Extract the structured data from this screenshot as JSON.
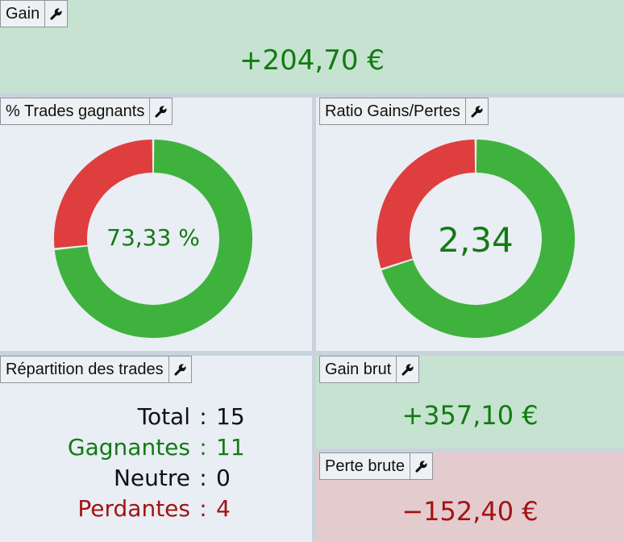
{
  "colors": {
    "positive_text": "#137a13",
    "negative_text": "#a31313",
    "donut_green": "#3fb23d",
    "donut_red": "#de3e3e"
  },
  "gain": {
    "label": "Gain",
    "tool_icon": "wrench-icon",
    "value": "+204,70 €"
  },
  "win_rate": {
    "label": "% Trades gagnants",
    "tool_icon": "wrench-icon",
    "center_text": "73,33 %",
    "green_fraction": 0.7333
  },
  "ratio": {
    "label": "Ratio Gains/Pertes",
    "tool_icon": "wrench-icon",
    "center_text": "2,34",
    "green_fraction": 0.7
  },
  "repartition": {
    "label": "Répartition des trades",
    "tool_icon": "wrench-icon",
    "separator": ":",
    "rows": [
      {
        "label": "Total",
        "value": "15"
      },
      {
        "label": "Gagnantes",
        "value": "11"
      },
      {
        "label": "Neutre",
        "value": "0"
      },
      {
        "label": "Perdantes",
        "value": "4"
      }
    ]
  },
  "gross_gain": {
    "label": "Gain brut",
    "tool_icon": "wrench-icon",
    "value": "+357,10 €"
  },
  "gross_loss": {
    "label": "Perte brute",
    "tool_icon": "wrench-icon",
    "value": "−152,40 €"
  }
}
